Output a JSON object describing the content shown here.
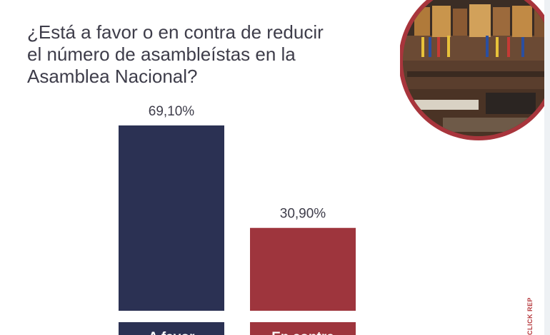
{
  "question": {
    "line1": "¿Está a favor o en contra de reducir",
    "line2": "el número de asambleístas en la",
    "line3": "Asamblea Nacional?"
  },
  "side_text": "CLICK REP",
  "colors": {
    "favor": "#2b3153",
    "contra": "#9e353d",
    "text": "#3e3d4a",
    "ring": "#a8353c"
  },
  "chart_data": {
    "type": "bar",
    "categories": [
      "A favor",
      "En contra"
    ],
    "values": [
      69.1,
      30.9
    ],
    "value_labels": [
      "69,10%",
      "30,90%"
    ],
    "title": "¿Está a favor o en contra de reducir el número de asambleístas en la Asamblea Nacional?",
    "xlabel": "",
    "ylabel": "",
    "ylim": [
      0,
      100
    ],
    "grid": false,
    "legend": "none"
  },
  "image": {
    "subject": "assembly-chamber-photo"
  }
}
